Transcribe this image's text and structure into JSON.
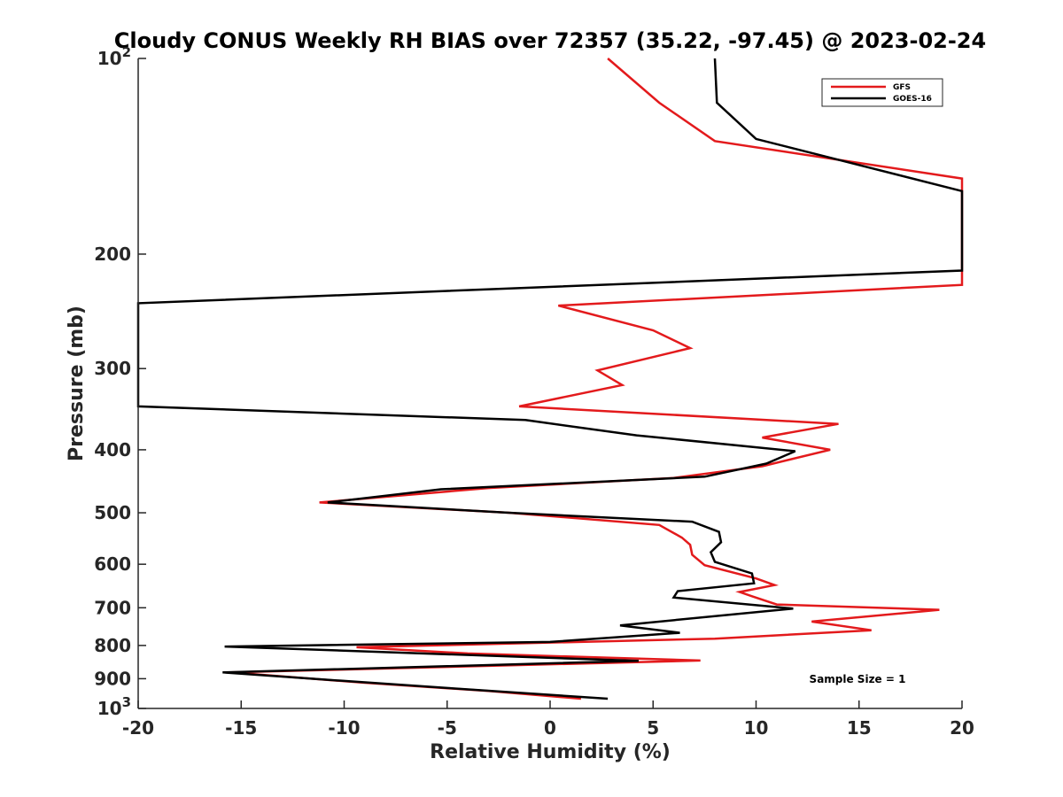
{
  "chart_data": {
    "type": "line",
    "title": "Cloudy CONUS Weekly RH BIAS over 72357 (35.22, -97.45) @ 2023-02-24",
    "xlabel": "Relative Humidity (%)",
    "ylabel": "Pressure (mb)",
    "xlim": [
      -20,
      20
    ],
    "ylim": [
      1000,
      100
    ],
    "yscale": "log",
    "y_reversed": true,
    "x_ticks": [
      {
        "value": -20,
        "label": "-20"
      },
      {
        "value": -15,
        "label": "-15"
      },
      {
        "value": -10,
        "label": "-10"
      },
      {
        "value": -5,
        "label": "-5"
      },
      {
        "value": 0,
        "label": "0"
      },
      {
        "value": 5,
        "label": "5"
      },
      {
        "value": 10,
        "label": "10"
      },
      {
        "value": 15,
        "label": "15"
      },
      {
        "value": 20,
        "label": "20"
      }
    ],
    "y_ticks": [
      {
        "value": 100,
        "base": "10",
        "exp": "2"
      },
      {
        "value": 200,
        "base": "200",
        "exp": ""
      },
      {
        "value": 300,
        "base": "300",
        "exp": ""
      },
      {
        "value": 400,
        "base": "400",
        "exp": ""
      },
      {
        "value": 500,
        "base": "500",
        "exp": ""
      },
      {
        "value": 600,
        "base": "600",
        "exp": ""
      },
      {
        "value": 700,
        "base": "700",
        "exp": ""
      },
      {
        "value": 800,
        "base": "800",
        "exp": ""
      },
      {
        "value": 900,
        "base": "900",
        "exp": ""
      },
      {
        "value": 1000,
        "base": "10",
        "exp": "3"
      }
    ],
    "grid": false,
    "legend_position": "top-right",
    "annotation": "Sample Size = 1",
    "series": [
      {
        "name": "GFS",
        "color": "#e31a1c",
        "points": [
          [
            2.8,
            100
          ],
          [
            5.3,
            117
          ],
          [
            8.0,
            134
          ],
          [
            20.0,
            153
          ],
          [
            20.0,
            223
          ],
          [
            0.4,
            240
          ],
          [
            5.0,
            262
          ],
          [
            6.8,
            279
          ],
          [
            2.3,
            302
          ],
          [
            3.5,
            318
          ],
          [
            -1.5,
            343
          ],
          [
            14.0,
            365
          ],
          [
            10.3,
            383
          ],
          [
            13.6,
            400
          ],
          [
            10.3,
            424
          ],
          [
            6.0,
            442
          ],
          [
            -3.0,
            458
          ],
          [
            -11.2,
            482
          ],
          [
            -2.0,
            500
          ],
          [
            5.3,
            522
          ],
          [
            6.4,
            546
          ],
          [
            6.8,
            560
          ],
          [
            6.9,
            580
          ],
          [
            7.5,
            602
          ],
          [
            10.0,
            631
          ],
          [
            10.9,
            646
          ],
          [
            9.2,
            662
          ],
          [
            9.8,
            672
          ],
          [
            11.0,
            692
          ],
          [
            18.9,
            705
          ],
          [
            12.7,
            735
          ],
          [
            15.6,
            758
          ],
          [
            8.0,
            781
          ],
          [
            -9.4,
            805
          ],
          [
            -4.0,
            823
          ],
          [
            7.3,
            844
          ],
          [
            -15.5,
            880
          ],
          [
            -9.0,
            913
          ],
          [
            -3.0,
            940
          ],
          [
            1.5,
            966
          ]
        ]
      },
      {
        "name": "GOES-16",
        "color": "#000000",
        "points": [
          [
            8.0,
            100
          ],
          [
            8.1,
            117
          ],
          [
            10.0,
            133
          ],
          [
            20.0,
            160
          ],
          [
            20.0,
            212
          ],
          [
            -20.0,
            238
          ],
          [
            -20.0,
            343
          ],
          [
            -1.2,
            360
          ],
          [
            4.2,
            380
          ],
          [
            11.9,
            402
          ],
          [
            10.5,
            420
          ],
          [
            7.5,
            440
          ],
          [
            -5.3,
            460
          ],
          [
            -10.8,
            482
          ],
          [
            -2.0,
            500
          ],
          [
            6.9,
            516
          ],
          [
            8.2,
            535
          ],
          [
            8.3,
            555
          ],
          [
            7.8,
            575
          ],
          [
            8.0,
            595
          ],
          [
            9.8,
            620
          ],
          [
            9.9,
            642
          ],
          [
            6.2,
            660
          ],
          [
            6.0,
            675
          ],
          [
            11.8,
            702
          ],
          [
            3.4,
            745
          ],
          [
            6.3,
            765
          ],
          [
            0.0,
            790
          ],
          [
            -15.8,
            803
          ],
          [
            4.3,
            845
          ],
          [
            -15.9,
            880
          ],
          [
            -10.0,
            907
          ],
          [
            -5.0,
            930
          ],
          [
            2.8,
            966
          ]
        ]
      }
    ]
  }
}
